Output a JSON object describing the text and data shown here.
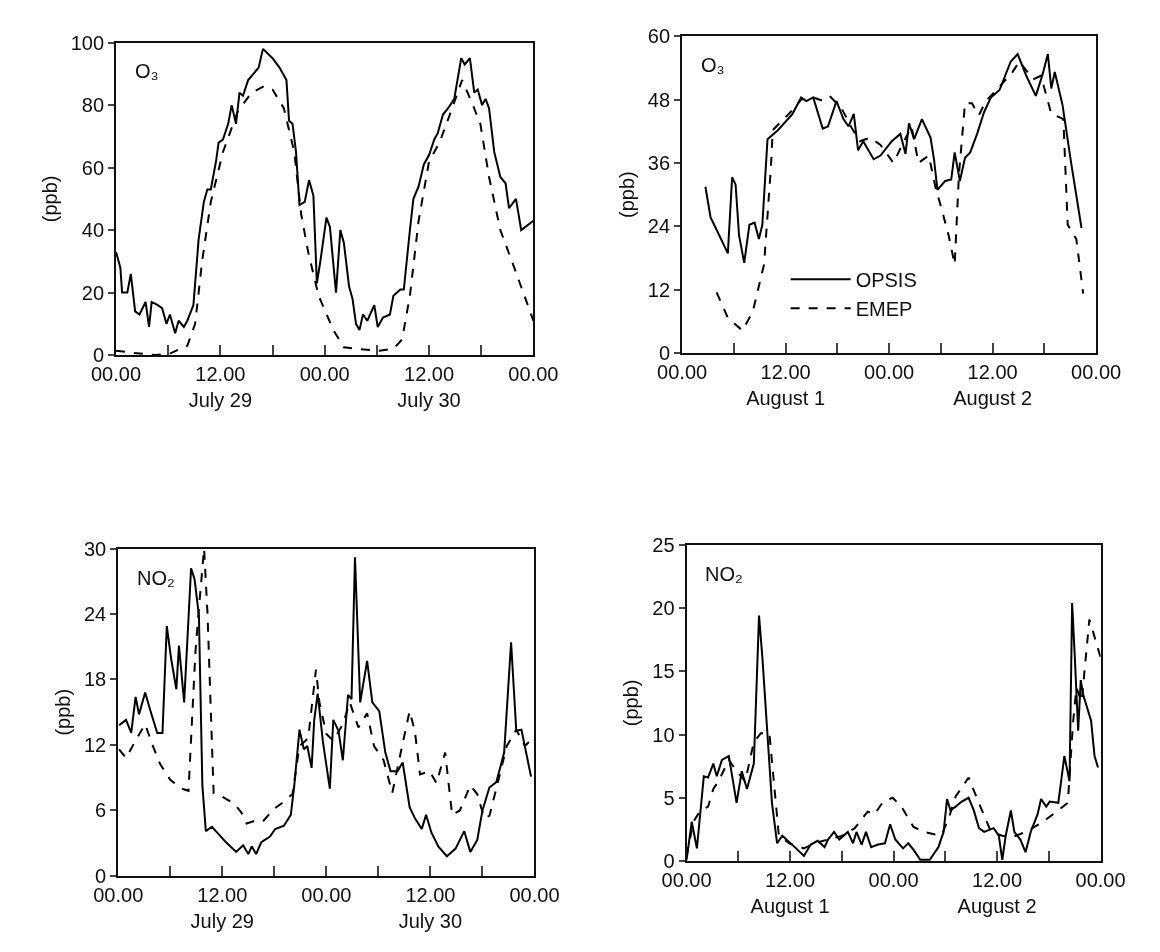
{
  "chart_data": [
    {
      "type": "line",
      "annotations": [
        "O₃"
      ],
      "ylabel": "(ppb)",
      "xlim": [
        "--07-29T00:00",
        "--07-31T00:00"
      ],
      "ylim": [
        0,
        100
      ],
      "xticks": [
        {
          "value": "--07-29T00:00",
          "label": "00.00"
        },
        {
          "value": "--07-29T06:00",
          "label": null
        },
        {
          "value": "--07-29T12:00",
          "label": "12.00\nJuly 29"
        },
        {
          "value": "--07-29T18:00",
          "label": null
        },
        {
          "value": "--07-30T00:00",
          "label": "00.00"
        },
        {
          "value": "--07-30T06:00",
          "label": null
        },
        {
          "value": "--07-30T12:00",
          "label": "12.00\nJuly 30"
        },
        {
          "value": "--07-30T18:00",
          "label": null
        },
        {
          "value": "--07-31T00:00",
          "label": "00.00"
        }
      ],
      "yticks": [
        0,
        20,
        40,
        60,
        80,
        100
      ],
      "series": [
        {
          "color": "#000000",
          "line_style": "solid",
          "x": [
            "--07-29T00:00",
            "--07-29T00:30",
            "--07-29T00:42",
            "--07-29T01:18",
            "--07-29T01:42",
            "--07-29T02:12",
            "--07-29T02:42",
            "--07-29T03:24",
            "--07-29T03:48",
            "--07-29T04:06",
            "--07-29T04:48",
            "--07-29T05:18",
            "--07-29T05:48",
            "--07-29T06:12",
            "--07-29T06:48",
            "--07-29T07:12",
            "--07-29T07:48",
            "--07-29T08:12",
            "--07-29T08:54",
            "--07-29T09:30",
            "--07-29T10:06",
            "--07-29T10:30",
            "--07-29T10:54",
            "--07-29T11:30",
            "--07-29T11:48",
            "--07-29T12:18",
            "--07-29T12:54",
            "--07-29T13:18",
            "--07-29T13:48",
            "--07-29T14:12",
            "--07-29T14:36",
            "--07-29T15:12",
            "--07-29T15:48",
            "--07-29T16:24",
            "--07-29T16:54",
            "--07-29T18:00",
            "--07-29T18:48",
            "--07-29T19:36",
            "--07-29T19:54",
            "--07-29T20:18",
            "--07-29T20:42",
            "--07-29T21:06",
            "--07-29T21:42",
            "--07-29T22:12",
            "--07-29T22:42",
            "--07-29T23:06",
            "--07-29T23:30",
            "--07-30T00:12",
            "--07-30T00:36",
            "--07-30T01:18",
            "--07-30T01:48",
            "--07-30T02:12",
            "--07-30T02:48",
            "--07-30T03:12",
            "--07-30T03:36",
            "--07-30T04:00",
            "--07-30T04:24",
            "--07-30T04:54",
            "--07-30T05:42",
            "--07-30T06:06",
            "--07-30T06:42",
            "--07-30T07:30",
            "--07-30T07:54",
            "--07-30T08:42",
            "--07-30T09:06",
            "--07-30T09:48",
            "--07-30T10:12",
            "--07-30T10:48",
            "--07-30T11:24",
            "--07-30T12:00",
            "--07-30T12:36",
            "--07-30T13:00",
            "--07-30T13:36",
            "--07-30T14:12",
            "--07-30T14:54",
            "--07-30T15:42",
            "--07-30T16:06",
            "--07-30T16:42",
            "--07-30T17:12",
            "--07-30T17:36",
            "--07-30T18:06",
            "--07-30T18:30",
            "--07-30T18:54",
            "--07-30T19:30",
            "--07-30T20:12",
            "--07-30T20:48",
            "--07-30T21:12",
            "--07-30T22:00",
            "--07-30T22:36",
            "--07-31T00:00"
          ],
          "values": [
            33,
            28,
            20,
            20,
            26,
            14,
            13,
            17,
            9,
            17,
            16,
            15,
            10,
            13,
            7,
            11,
            9,
            11,
            16,
            37,
            49,
            53,
            53,
            62,
            68,
            69,
            74,
            80,
            74,
            84,
            83,
            88,
            90,
            92,
            98,
            95,
            92,
            88,
            75,
            74,
            65,
            48,
            49,
            56,
            51,
            23,
            30,
            44,
            41,
            20,
            40,
            36,
            22,
            18,
            10,
            8,
            13,
            11,
            16,
            9,
            12,
            13,
            19,
            21,
            21,
            40,
            50,
            54,
            61,
            64,
            69,
            71,
            77,
            79,
            82,
            95,
            93,
            95,
            84,
            85,
            80,
            82,
            79,
            65,
            57,
            55,
            47,
            50,
            40,
            43
          ]
        },
        {
          "color": "#000000",
          "line_style": "dashed",
          "x": [
            "--07-29T00:00",
            "--07-29T01:42",
            "--07-29T04:36",
            "--07-29T06:12",
            "--07-29T08:12",
            "--07-29T09:06",
            "--07-29T09:54",
            "--07-29T10:54",
            "--07-29T12:18",
            "--07-29T14:00",
            "--07-29T15:36",
            "--07-29T17:00",
            "--07-29T18:00",
            "--07-29T19:18",
            "--07-29T20:30",
            "--07-29T21:18",
            "--07-29T22:06",
            "--07-29T23:18",
            "--07-30T01:00",
            "--07-30T02:12",
            "--07-30T03:36",
            "--07-30T06:18",
            "--07-30T07:54",
            "--07-30T08:54",
            "--07-30T09:48",
            "--07-30T10:48",
            "--07-30T12:00",
            "--07-30T13:12",
            "--07-30T14:24",
            "--07-30T15:48",
            "--07-30T16:54",
            "--07-30T17:54",
            "--07-30T18:54",
            "--07-30T20:12",
            "--07-30T21:48",
            "--07-31T00:00"
          ],
          "values": [
            1.4,
            0.8,
            0,
            0.5,
            3,
            10,
            30,
            49,
            65,
            78,
            84,
            86,
            85,
            79,
            65,
            45,
            33,
            19,
            8,
            2.5,
            2,
            1.4,
            2,
            5,
            19,
            43,
            62,
            68,
            77,
            88,
            81,
            74,
            57,
            40,
            28,
            11
          ]
        }
      ]
    },
    {
      "type": "line",
      "annotations": [
        "O₃"
      ],
      "ylabel": "(ppb)",
      "xlim": [
        "--08-01T00:00",
        "--08-03T00:00"
      ],
      "ylim": [
        0,
        60
      ],
      "legend": "bottom",
      "xticks": [
        {
          "value": "--08-01T00:00",
          "label": "00.00"
        },
        {
          "value": "--08-01T06:00",
          "label": null
        },
        {
          "value": "--08-01T12:00",
          "label": "12.00\nAugust 1"
        },
        {
          "value": "--08-01T18:00",
          "label": null
        },
        {
          "value": "--08-02T00:00",
          "label": "00.00"
        },
        {
          "value": "--08-02T06:00",
          "label": null
        },
        {
          "value": "--08-02T12:00",
          "label": "12.00\nAugust 2"
        },
        {
          "value": "--08-02T18:00",
          "label": null
        },
        {
          "value": "--08-03T00:00",
          "label": "00.00"
        }
      ],
      "yticks": [
        0,
        12,
        24,
        36,
        48,
        60
      ],
      "series": [
        {
          "name": "OPSIS",
          "color": "#000000",
          "line_style": "solid",
          "x": [
            "--08-01T02:42",
            "--08-01T03:18",
            "--08-01T03:54",
            "--08-01T05:18",
            "--08-01T05:48",
            "--08-01T06:12",
            "--08-01T06:36",
            "--08-01T07:12",
            "--08-01T07:48",
            "--08-01T08:24",
            "--08-01T08:54",
            "--08-01T09:18",
            "--08-01T09:54",
            "--08-01T11:06",
            "--08-01T12:48",
            "--08-01T13:48",
            "--08-01T14:24",
            "--08-01T15:12",
            "--08-01T16:18",
            "--08-01T16:54",
            "--08-01T17:54",
            "--08-01T18:42",
            "--08-01T19:18",
            "--08-01T19:54",
            "--08-01T20:24",
            "--08-01T21:00",
            "--08-01T22:12",
            "--08-01T23:00",
            "--08-02T00:18",
            "--08-02T01:18",
            "--08-02T01:54",
            "--08-02T02:18",
            "--08-02T02:54",
            "--08-02T03:48",
            "--08-02T04:48",
            "--08-02T05:12",
            "--08-02T05:36",
            "--08-02T06:30",
            "--08-02T07:12",
            "--08-02T07:36",
            "--08-02T08:12",
            "--08-02T08:48",
            "--08-02T09:24",
            "--08-02T10:12",
            "--08-02T11:00",
            "--08-02T11:48",
            "--08-02T12:48",
            "--08-02T14:06",
            "--08-02T14:54",
            "--08-02T15:54",
            "--08-02T17:00",
            "--08-02T17:48",
            "--08-02T18:24",
            "--08-02T18:48",
            "--08-02T19:12",
            "--08-02T20:06",
            "--08-02T21:06",
            "--08-02T22:18"
          ],
          "values": [
            31.5,
            25.7,
            23.7,
            18.9,
            33.3,
            31.9,
            22.3,
            17.1,
            24.3,
            24.7,
            21.6,
            24.3,
            40.5,
            42.2,
            45.3,
            48.4,
            47.7,
            48.4,
            42.5,
            42.9,
            47.7,
            44.3,
            42.9,
            45.3,
            38.4,
            40.1,
            36.7,
            37.4,
            40.1,
            41.5,
            37.7,
            43.5,
            40.5,
            44.3,
            40.8,
            36.7,
            30.9,
            32.6,
            32.9,
            38,
            32.6,
            37,
            38,
            41.5,
            45.6,
            48.4,
            49.8,
            55.2,
            56.6,
            52.5,
            48.7,
            52.8,
            56.6,
            50.1,
            53.2,
            47,
            36,
            23.7
          ]
        },
        {
          "name": "EMEP",
          "color": "#000000",
          "line_style": "dashed",
          "x": [
            "--08-01T04:00",
            "--08-01T05:18",
            "--08-01T07:00",
            "--08-01T08:12",
            "--08-01T09:30",
            "--08-01T10:18",
            "--08-01T10:30",
            "--08-01T12:48",
            "--08-01T13:48",
            "--08-01T15:12",
            "--08-01T16:24",
            "--08-01T17:12",
            "--08-01T18:30",
            "--08-01T19:42",
            "--08-01T20:36",
            "--08-01T21:48",
            "--08-01T23:00",
            "--08-02T00:30",
            "--08-02T01:30",
            "--08-02T02:36",
            "--08-02T03:24",
            "--08-02T04:36",
            "--08-02T05:24",
            "--08-02T06:00",
            "--08-02T06:54",
            "--08-02T07:36",
            "--08-02T08:06",
            "--08-02T08:48",
            "--08-02T09:36",
            "--08-02T10:24",
            "--08-02T11:12",
            "--08-02T12:36",
            "--08-02T14:18",
            "--08-02T15:06",
            "--08-02T15:54",
            "--08-02T16:42",
            "--08-02T17:36",
            "--08-02T18:48",
            "--08-02T20:12",
            "--08-02T20:42",
            "--08-02T21:42",
            "--08-02T22:30"
          ],
          "values": [
            11.5,
            6.7,
            4.3,
            7.9,
            16.8,
            35.3,
            42.2,
            46,
            48,
            48.4,
            47.7,
            48.5,
            46.3,
            42.5,
            40.1,
            40.8,
            39.4,
            36,
            39.4,
            42.9,
            36,
            37.4,
            31.2,
            27.8,
            22.3,
            16.8,
            34,
            47.3,
            47.3,
            45,
            47.7,
            50.1,
            53.2,
            55.2,
            53.5,
            51.8,
            52.5,
            45.3,
            44.3,
            24.3,
            21.6,
            11.3
          ]
        }
      ]
    },
    {
      "type": "line",
      "annotations": [
        "NO₂"
      ],
      "ylabel": "(ppb)",
      "xlim": [
        "--07-29T00:00",
        "--07-31T00:00"
      ],
      "ylim": [
        0,
        30
      ],
      "xticks": [
        {
          "value": "--07-29T00:00",
          "label": "00.00"
        },
        {
          "value": "--07-29T06:00",
          "label": null
        },
        {
          "value": "--07-29T12:00",
          "label": "12.00\nJuly 29"
        },
        {
          "value": "--07-29T18:00",
          "label": null
        },
        {
          "value": "--07-30T00:00",
          "label": "00.00"
        },
        {
          "value": "--07-30T06:00",
          "label": null
        },
        {
          "value": "--07-30T12:00",
          "label": "12.00\nJuly 30"
        },
        {
          "value": "--07-30T18:00",
          "label": null
        },
        {
          "value": "--07-31T00:00",
          "label": "00.00"
        }
      ],
      "yticks": [
        0,
        6,
        12,
        18,
        24,
        30
      ],
      "series": [
        {
          "color": "#000000",
          "line_style": "solid",
          "x": [
            "--07-29T00:06",
            "--07-29T00:54",
            "--07-29T01:30",
            "--07-29T02:00",
            "--07-29T02:24",
            "--07-29T03:06",
            "--07-29T03:48",
            "--07-29T04:30",
            "--07-29T05:06",
            "--07-29T05:36",
            "--07-29T06:06",
            "--07-29T06:42",
            "--07-29T07:00",
            "--07-29T07:36",
            "--07-29T08:24",
            "--07-29T08:48",
            "--07-29T09:18",
            "--07-29T09:42",
            "--07-29T10:06",
            "--07-29T10:48",
            "--07-29T11:36",
            "--07-29T12:24",
            "--07-29T13:36",
            "--07-29T14:24",
            "--07-29T15:00",
            "--07-29T15:24",
            "--07-29T15:54",
            "--07-29T16:30",
            "--07-29T17:30",
            "--07-29T18:06",
            "--07-29T19:06",
            "--07-29T19:54",
            "--07-29T20:18",
            "--07-29T20:54",
            "--07-29T21:24",
            "--07-29T21:48",
            "--07-29T22:18",
            "--07-29T22:36",
            "--07-29T23:00",
            "--07-29T23:36",
            "--07-30T00:24",
            "--07-30T00:48",
            "--07-30T01:24",
            "--07-30T01:54",
            "--07-30T02:30",
            "--07-30T02:54",
            "--07-30T03:18",
            "--07-30T03:54",
            "--07-30T04:42",
            "--07-30T05:18",
            "--07-30T06:06",
            "--07-30T06:48",
            "--07-30T07:24",
            "--07-30T08:12",
            "--07-30T08:48",
            "--07-30T09:36",
            "--07-30T10:12",
            "--07-30T11:00",
            "--07-30T11:30",
            "--07-30T12:06",
            "--07-30T12:54",
            "--07-30T13:54",
            "--07-30T14:54",
            "--07-30T15:54",
            "--07-30T16:36",
            "--07-30T17:24",
            "--07-30T18:00",
            "--07-30T18:48",
            "--07-30T19:36",
            "--07-30T20:30",
            "--07-30T21:18",
            "--07-30T21:54",
            "--07-30T22:30",
            "--07-30T23:36"
          ],
          "values": [
            13.8,
            14.3,
            13.1,
            16.4,
            14.8,
            16.8,
            14.9,
            13.1,
            13.1,
            22.9,
            19.9,
            17.1,
            21.1,
            15.9,
            28.2,
            27.2,
            23.9,
            8.3,
            4.1,
            4.5,
            3.8,
            3.1,
            2.2,
            2.8,
            2,
            2.7,
            2,
            3.1,
            3.6,
            4.3,
            4.6,
            5.6,
            8.3,
            13.4,
            11.6,
            11.9,
            9.9,
            14.3,
            16.7,
            12.3,
            8,
            14.3,
            13.3,
            10.6,
            16.6,
            16.2,
            29.2,
            15.9,
            19.7,
            15.9,
            15.1,
            11.3,
            9.6,
            9.6,
            10.4,
            6.3,
            5.3,
            4.3,
            5.6,
            4,
            2.7,
            1.8,
            2.5,
            4.1,
            2.2,
            3.3,
            6,
            8.1,
            8.6,
            11.3,
            21.4,
            13.3,
            13.4,
            9.1
          ]
        },
        {
          "color": "#000000",
          "line_style": "dashed",
          "x": [
            "--07-29T00:06",
            "--07-29T00:54",
            "--07-29T02:00",
            "--07-29T03:06",
            "--07-29T04:00",
            "--07-29T04:48",
            "--07-29T06:00",
            "--07-29T07:18",
            "--07-29T08:06",
            "--07-29T08:54",
            "--07-29T09:18",
            "--07-29T09:54",
            "--07-29T10:18",
            "--07-29T11:00",
            "--07-29T11:54",
            "--07-29T13:24",
            "--07-29T14:12",
            "--07-29T14:48",
            "--07-29T15:36",
            "--07-29T16:42",
            "--07-29T17:54",
            "--07-29T19:06",
            "--07-29T20:06",
            "--07-29T20:54",
            "--07-29T21:54",
            "--07-29T22:48",
            "--07-29T23:12",
            "--07-30T00:00",
            "--07-30T00:48",
            "--07-30T01:54",
            "--07-30T02:42",
            "--07-30T03:42",
            "--07-30T04:42",
            "--07-30T05:30",
            "--07-30T06:36",
            "--07-30T07:36",
            "--07-30T08:36",
            "--07-30T09:36",
            "--07-30T10:12",
            "--07-30T10:48",
            "--07-30T11:54",
            "--07-30T12:42",
            "--07-30T13:42",
            "--07-30T14:30",
            "--07-30T15:24",
            "--07-30T16:36",
            "--07-30T17:24",
            "--07-30T18:12",
            "--07-30T18:48",
            "--07-30T19:36",
            "--07-30T20:48",
            "--07-30T21:54",
            "--07-30T22:54",
            "--07-31T00:00"
          ],
          "values": [
            11.6,
            10.8,
            12.4,
            13.9,
            11.9,
            10.3,
            8.8,
            8,
            7.8,
            20.5,
            24.5,
            30,
            23.9,
            7.6,
            7.3,
            6.6,
            5.8,
            4.8,
            5,
            5,
            6.1,
            6.8,
            7.5,
            11.9,
            12.6,
            18.9,
            15.9,
            13,
            12.4,
            13.9,
            15.9,
            13.6,
            14.9,
            11.9,
            10.6,
            7.6,
            11.4,
            15.1,
            13.3,
            9.3,
            9.6,
            8.5,
            11.3,
            5.6,
            6,
            8.3,
            7.5,
            5.3,
            5.5,
            8,
            11.9,
            13.4,
            11.9,
            12.8
          ]
        }
      ]
    },
    {
      "type": "line",
      "annotations": [
        "NO₂"
      ],
      "ylabel": "(ppb)",
      "xlim": [
        "--08-01T00:00",
        "--08-03T00:00"
      ],
      "ylim": [
        0,
        25
      ],
      "xticks": [
        {
          "value": "--08-01T00:00",
          "label": "00.00"
        },
        {
          "value": "--08-01T06:00",
          "label": null
        },
        {
          "value": "--08-01T12:00",
          "label": "12.00\nAugust 1"
        },
        {
          "value": "--08-01T18:00",
          "label": null
        },
        {
          "value": "--08-02T00:00",
          "label": "00.00"
        },
        {
          "value": "--08-02T06:00",
          "label": null
        },
        {
          "value": "--08-02T12:00",
          "label": "12.00\nAugust 2"
        },
        {
          "value": "--08-02T18:00",
          "label": null
        },
        {
          "value": "--08-03T00:00",
          "label": "00.00"
        }
      ],
      "yticks": [
        0,
        5,
        10,
        15,
        20,
        25
      ],
      "series": [
        {
          "color": "#000000",
          "line_style": "solid",
          "x": [
            "--08-01T00:00",
            "--08-01T00:36",
            "--08-01T01:12",
            "--08-01T02:00",
            "--08-01T02:30",
            "--08-01T03:06",
            "--08-01T03:30",
            "--08-01T04:06",
            "--08-01T04:54",
            "--08-01T05:48",
            "--08-01T06:24",
            "--08-01T07:00",
            "--08-01T07:48",
            "--08-01T08:24",
            "--08-01T08:48",
            "--08-01T09:54",
            "--08-01T10:30",
            "--08-01T11:06",
            "--08-01T12:42",
            "--08-01T13:36",
            "--08-01T14:24",
            "--08-01T15:12",
            "--08-01T16:00",
            "--08-01T16:24",
            "--08-01T17:06",
            "--08-01T17:42",
            "--08-01T18:42",
            "--08-01T19:18",
            "--08-01T19:42",
            "--08-01T20:18",
            "--08-01T20:48",
            "--08-01T21:24",
            "--08-01T22:12",
            "--08-01T23:00",
            "--08-01T23:36",
            "--08-02T00:12",
            "--08-02T01:06",
            "--08-02T01:42",
            "--08-02T02:18",
            "--08-02T03:06",
            "--08-02T04:12",
            "--08-02T05:12",
            "--08-02T05:48",
            "--08-02T06:12",
            "--08-02T06:36",
            "--08-02T07:12",
            "--08-02T07:54",
            "--08-02T08:42",
            "--08-02T09:18",
            "--08-02T09:54",
            "--08-02T10:30",
            "--08-02T11:36",
            "--08-02T12:12",
            "--08-02T12:36",
            "--08-02T13:00",
            "--08-02T13:36",
            "--08-02T14:00",
            "--08-02T14:42",
            "--08-02T15:18",
            "--08-02T15:54",
            "--08-02T16:42",
            "--08-02T17:06",
            "--08-02T17:42",
            "--08-02T18:06",
            "--08-02T19:06",
            "--08-02T19:48",
            "--08-02T20:24",
            "--08-02T20:42",
            "--08-02T21:00",
            "--08-02T21:24",
            "--08-02T21:42",
            "--08-02T22:00",
            "--08-02T22:54",
            "--08-02T23:18",
            "--08-02T23:42"
          ],
          "values": [
            0.1,
            3.1,
            1,
            6.7,
            6.6,
            7.7,
            6.7,
            8,
            8.3,
            4.6,
            7.1,
            5.7,
            7.7,
            19.4,
            16,
            4.6,
            1.4,
            2,
            1,
            0.4,
            1.3,
            1.6,
            1.1,
            1.7,
            2.3,
            1.7,
            2.3,
            1.4,
            2.3,
            1.3,
            2.3,
            1.1,
            1.3,
            1.4,
            2.9,
            1.7,
            1,
            1.4,
            0.9,
            0.1,
            0.1,
            1.1,
            2.3,
            4.9,
            4,
            4.3,
            4.7,
            5,
            4,
            2.6,
            2.3,
            2.6,
            2,
            0.1,
            2,
            4,
            2.3,
            1.7,
            0.7,
            2.3,
            3.7,
            4.9,
            4.3,
            4.7,
            4.6,
            8.3,
            6.3,
            20.4,
            16.3,
            10.3,
            14.3,
            13.1,
            11.1,
            8.3,
            7.4
          ]
        },
        {
          "color": "#000000",
          "line_style": "dashed",
          "x": [
            "--08-01T00:00",
            "--08-01T00:48",
            "--08-01T01:36",
            "--08-01T02:30",
            "--08-01T03:06",
            "--08-01T03:42",
            "--08-01T04:54",
            "--08-01T05:48",
            "--08-01T06:48",
            "--08-01T07:48",
            "--08-01T08:36",
            "--08-01T09:36",
            "--08-01T10:42",
            "--08-01T11:54",
            "--08-01T13:36",
            "--08-01T14:48",
            "--08-01T16:24",
            "--08-01T18:06",
            "--08-01T19:30",
            "--08-01T21:00",
            "--08-01T21:48",
            "--08-01T22:48",
            "--08-01T23:54",
            "--08-02T00:54",
            "--08-02T02:18",
            "--08-02T03:30",
            "--08-02T04:48",
            "--08-02T05:36",
            "--08-02T06:24",
            "--08-02T07:12",
            "--08-02T08:42",
            "--08-02T09:42",
            "--08-02T11:18",
            "--08-02T12:36",
            "--08-02T13:48",
            "--08-02T15:18",
            "--08-02T17:06",
            "--08-02T18:18",
            "--08-02T20:12",
            "--08-02T20:48",
            "--08-02T21:12",
            "--08-02T21:48",
            "--08-02T22:42",
            "--08-03T00:00"
          ],
          "values": [
            0.4,
            3.1,
            4,
            4.3,
            5.7,
            6.3,
            8,
            7.1,
            6.3,
            9.4,
            10.1,
            10.1,
            2,
            1.4,
            1,
            1.4,
            1.7,
            2,
            2.6,
            3.9,
            3.7,
            4.7,
            5,
            4.3,
            2.7,
            2.3,
            2.1,
            2.1,
            3.4,
            5.1,
            6.6,
            4.9,
            2.3,
            2,
            1.9,
            2.3,
            3,
            3.6,
            4.6,
            10.9,
            13.7,
            12.6,
            19.1,
            16.1
          ]
        }
      ]
    }
  ]
}
